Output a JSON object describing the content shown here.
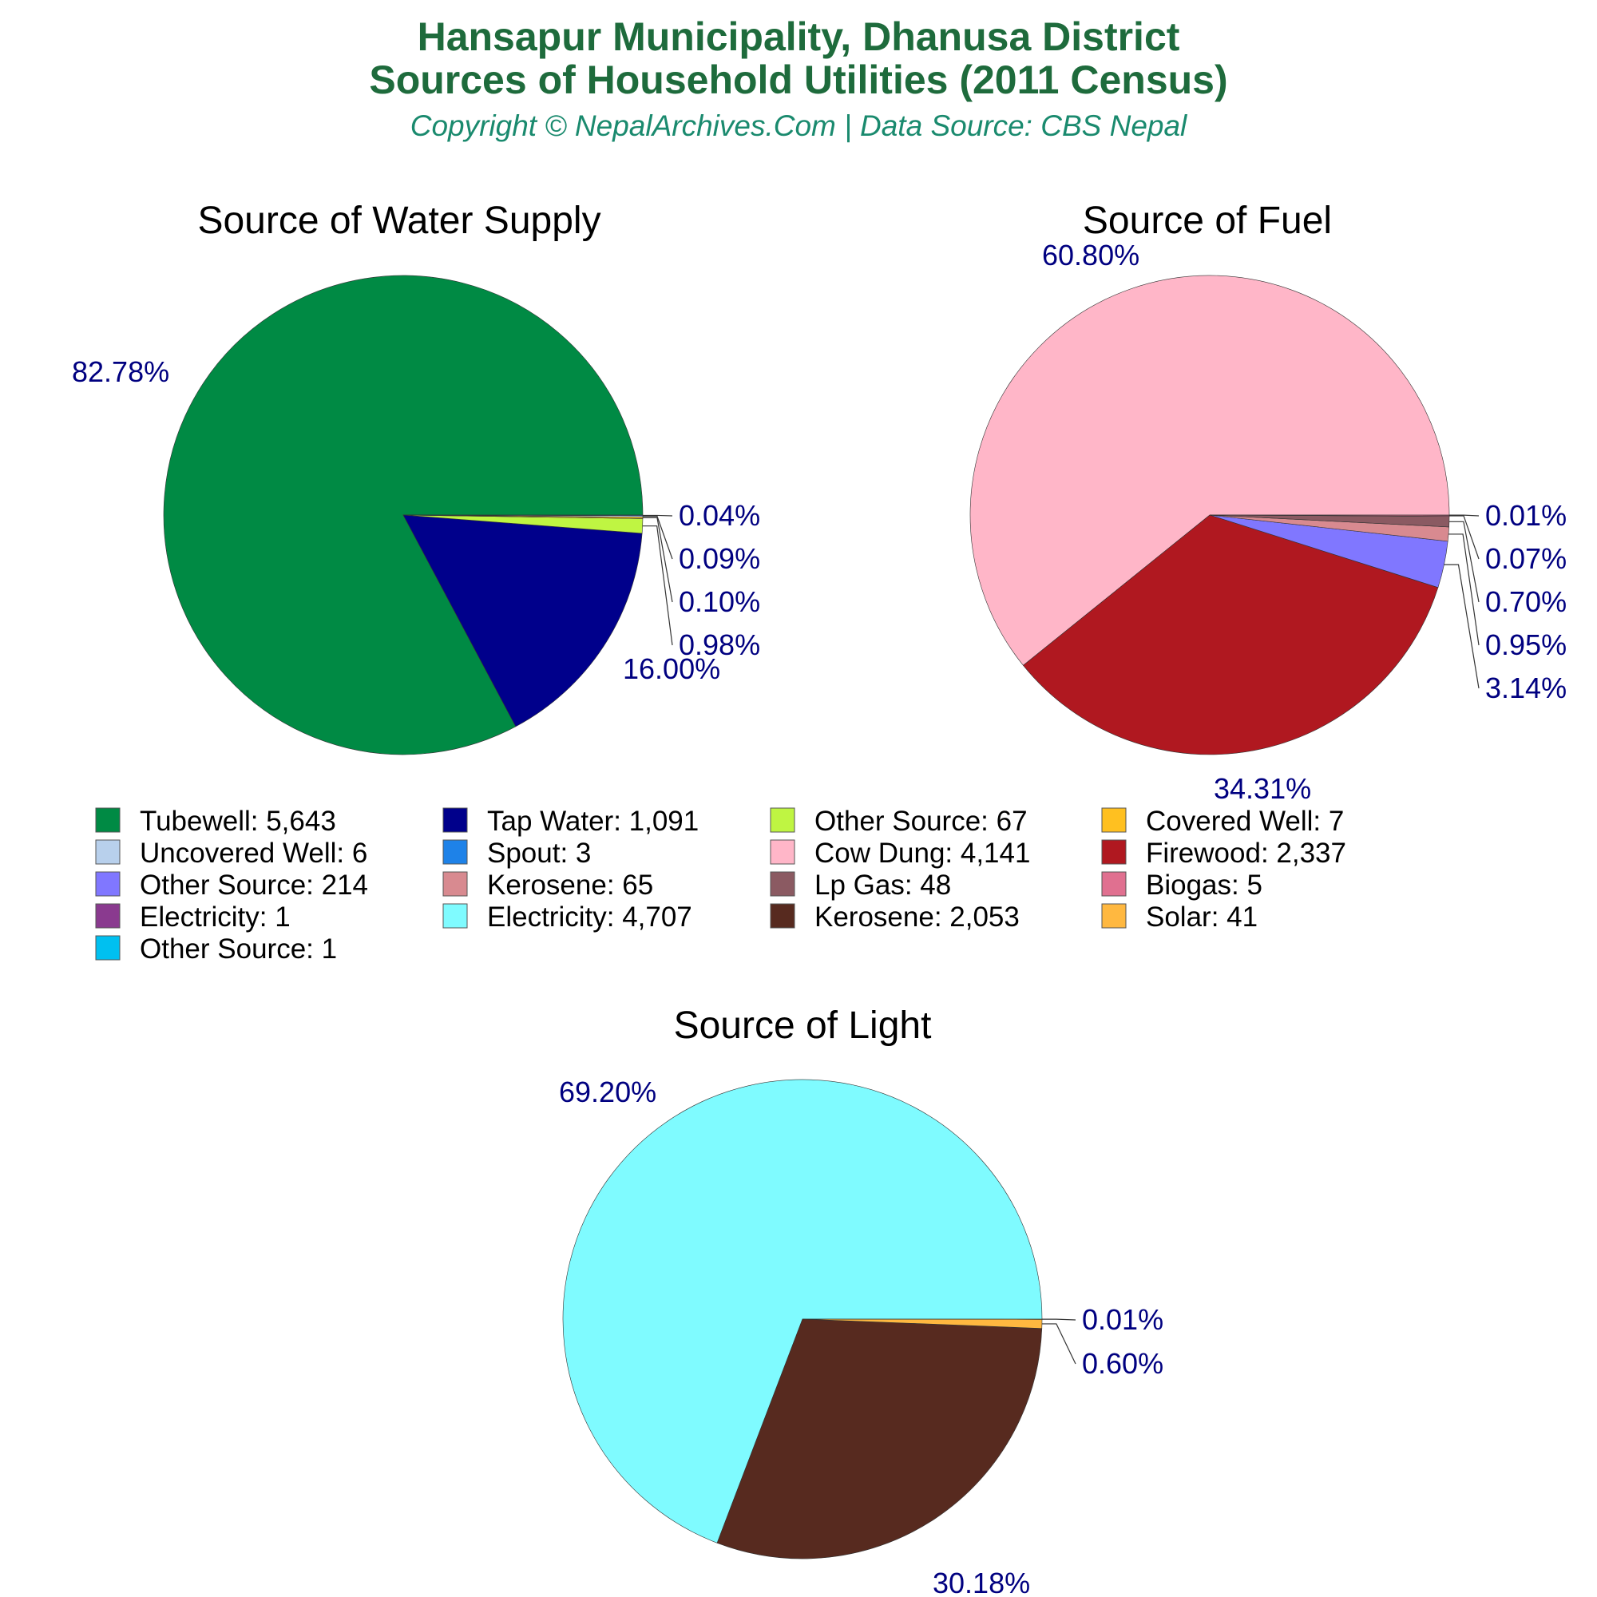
{
  "header": {
    "title_line1": "Hansapur Municipality, Dhanusa District",
    "title_line2": "Sources of Household Utilities (2011 Census)",
    "subtitle": "Copyright © NepalArchives.Com | Data Source: CBS Nepal"
  },
  "colors": {
    "title": "#1e6b3c",
    "subtitle": "#1a8a6e",
    "percent_label": "#000080"
  },
  "chart_data": [
    {
      "type": "pie",
      "title": "Source of Water Supply",
      "slices": [
        {
          "label": "Tubewell",
          "value": 5643,
          "percent": "82.78%",
          "color": "#008a44"
        },
        {
          "label": "Tap Water",
          "value": 1091,
          "percent": "16.00%",
          "color": "#00008b"
        },
        {
          "label": "Other Source",
          "value": 67,
          "percent": "0.98%",
          "color": "#bff542"
        },
        {
          "label": "Covered Well",
          "value": 7,
          "percent": "0.10%",
          "color": "#ffc020"
        },
        {
          "label": "Uncovered Well",
          "value": 6,
          "percent": "0.09%",
          "color": "#b8d0ec"
        },
        {
          "label": "Spout",
          "value": 3,
          "percent": "0.04%",
          "color": "#1e82e8"
        }
      ]
    },
    {
      "type": "pie",
      "title": "Source of Fuel",
      "slices": [
        {
          "label": "Cow Dung",
          "value": 4141,
          "percent": "60.80%",
          "color": "#ffb6c8"
        },
        {
          "label": "Firewood",
          "value": 2337,
          "percent": "34.31%",
          "color": "#b01820"
        },
        {
          "label": "Other Source",
          "value": 214,
          "percent": "3.14%",
          "color": "#8077ff"
        },
        {
          "label": "Kerosene",
          "value": 65,
          "percent": "0.95%",
          "color": "#d88a90"
        },
        {
          "label": "Lp Gas",
          "value": 48,
          "percent": "0.70%",
          "color": "#8b5a62"
        },
        {
          "label": "Biogas",
          "value": 5,
          "percent": "0.07%",
          "color": "#e07090"
        },
        {
          "label": "Electricity",
          "value": 1,
          "percent": "0.01%",
          "color": "#8a3a8f"
        }
      ]
    },
    {
      "type": "pie",
      "title": "Source of Light",
      "slices": [
        {
          "label": "Electricity",
          "value": 4707,
          "percent": "69.20%",
          "color": "#7ffbff"
        },
        {
          "label": "Kerosene",
          "value": 2053,
          "percent": "30.18%",
          "color": "#572a1f"
        },
        {
          "label": "Solar",
          "value": 41,
          "percent": "0.60%",
          "color": "#ffb840"
        },
        {
          "label": "Other Source",
          "value": 1,
          "percent": "0.01%",
          "color": "#00c0f0"
        }
      ]
    }
  ],
  "legend": [
    {
      "text": "Tubewell: 5,643",
      "color": "#008a44"
    },
    {
      "text": "Tap Water: 1,091",
      "color": "#00008b"
    },
    {
      "text": "Other Source: 67",
      "color": "#bff542"
    },
    {
      "text": "Covered Well: 7",
      "color": "#ffc020"
    },
    {
      "text": "Uncovered Well: 6",
      "color": "#b8d0ec"
    },
    {
      "text": "Spout: 3",
      "color": "#1e82e8"
    },
    {
      "text": "Cow Dung: 4,141",
      "color": "#ffb6c8"
    },
    {
      "text": "Firewood: 2,337",
      "color": "#b01820"
    },
    {
      "text": "Other Source: 214",
      "color": "#8077ff"
    },
    {
      "text": "Kerosene: 65",
      "color": "#d88a90"
    },
    {
      "text": "Lp Gas: 48",
      "color": "#8b5a62"
    },
    {
      "text": "Biogas: 5",
      "color": "#e07090"
    },
    {
      "text": "Electricity: 1",
      "color": "#8a3a8f"
    },
    {
      "text": "Electricity: 4,707",
      "color": "#7ffbff"
    },
    {
      "text": "Kerosene: 2,053",
      "color": "#572a1f"
    },
    {
      "text": "Solar: 41",
      "color": "#ffb840"
    },
    {
      "text": "Other Source: 1",
      "color": "#00c0f0"
    }
  ]
}
